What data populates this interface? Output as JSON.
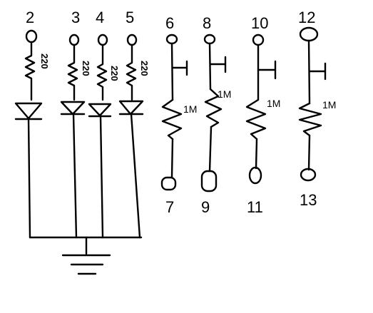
{
  "led_channels": [
    {
      "top_pin": "2",
      "resistor_label": "220"
    },
    {
      "top_pin": "3",
      "resistor_label": "220"
    },
    {
      "top_pin": "4",
      "resistor_label": "220"
    },
    {
      "top_pin": "5",
      "resistor_label": "220"
    }
  ],
  "sensor_channels": [
    {
      "top_pin": "6",
      "resistor_label": "1M",
      "bottom_pin": "7"
    },
    {
      "top_pin": "8",
      "resistor_label": "1M",
      "bottom_pin": "9"
    },
    {
      "top_pin": "10",
      "resistor_label": "1M",
      "bottom_pin": "11"
    },
    {
      "top_pin": "12",
      "resistor_label": "1M",
      "bottom_pin": "13"
    }
  ],
  "colors": {
    "ink": "#000000",
    "background": "#ffffff"
  }
}
